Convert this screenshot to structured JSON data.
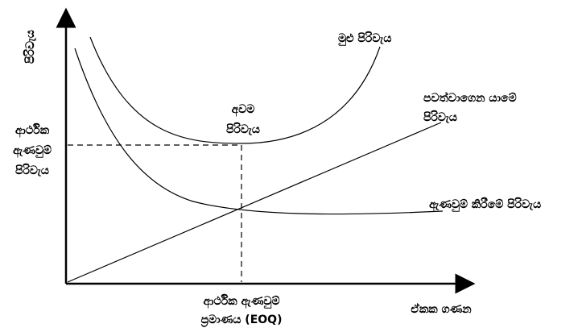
{
  "diagram": {
    "y_axis_label": "පිරිවැය",
    "x_axis_label": "ඒකක ගණන",
    "total_cost_label": "මුළු පිරිවැය",
    "holding_cost_label_line1": "පවත්වාගෙන යාමේ",
    "holding_cost_label_line2": "පිරිවැය",
    "ordering_cost_label": "ඇණවුම් කිරීමේ පිරිවැය",
    "minimum_cost_label_line1": "අවම",
    "minimum_cost_label_line2": "පිරිවැය",
    "economic_cost_label_line1": "ආර්ථික",
    "economic_cost_label_line2": "ඇණවුම්",
    "economic_cost_label_line3": "පිරිවැය",
    "eoq_label_line1": "ආර්ථික ඇණවුම්",
    "eoq_label_line2": "ප්‍රමාණය (EOQ)",
    "colors": {
      "lines": "#000000",
      "background": "#ffffff"
    }
  }
}
